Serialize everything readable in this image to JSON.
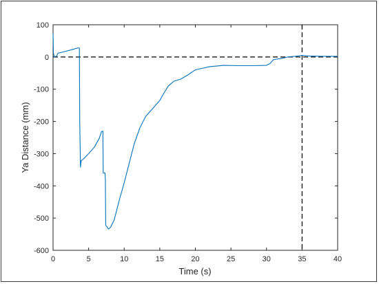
{
  "chart_data": {
    "type": "line",
    "title": "",
    "xlabel": "Time (s)",
    "ylabel": "Ya Distance  (mm)",
    "xlim": [
      0,
      40
    ],
    "ylim": [
      -600,
      100
    ],
    "xticks": [
      0,
      5,
      10,
      15,
      20,
      25,
      30,
      35,
      40
    ],
    "yticks": [
      100,
      0,
      -100,
      -200,
      -300,
      -400,
      -500,
      -600
    ],
    "grid": false,
    "series": [
      {
        "color": "#0072BD",
        "points": [
          [
            0.0,
            72
          ],
          [
            0.05,
            12
          ],
          [
            0.2,
            0
          ],
          [
            0.5,
            3
          ],
          [
            0.7,
            12
          ],
          [
            1.5,
            16
          ],
          [
            2.5,
            22
          ],
          [
            3.5,
            28
          ],
          [
            3.7,
            28
          ],
          [
            3.75,
            -200
          ],
          [
            3.85,
            -342
          ],
          [
            3.95,
            -322
          ],
          [
            4.3,
            -316
          ],
          [
            5.0,
            -300
          ],
          [
            5.8,
            -280
          ],
          [
            6.5,
            -252
          ],
          [
            6.8,
            -232
          ],
          [
            7.0,
            -230
          ],
          [
            7.05,
            -360
          ],
          [
            7.3,
            -360
          ],
          [
            7.35,
            -380
          ],
          [
            7.4,
            -522
          ],
          [
            7.8,
            -534
          ],
          [
            8.1,
            -528
          ],
          [
            8.6,
            -505
          ],
          [
            9.3,
            -445
          ],
          [
            10.0,
            -390
          ],
          [
            10.7,
            -330
          ],
          [
            11.4,
            -270
          ],
          [
            12.2,
            -220
          ],
          [
            13.0,
            -185
          ],
          [
            14.0,
            -160
          ],
          [
            15.0,
            -135
          ],
          [
            15.5,
            -115
          ],
          [
            16.2,
            -90
          ],
          [
            17.0,
            -75
          ],
          [
            18.0,
            -68
          ],
          [
            19.0,
            -55
          ],
          [
            20.0,
            -40
          ],
          [
            21.0,
            -35
          ],
          [
            22.0,
            -30
          ],
          [
            24.0,
            -26
          ],
          [
            26.0,
            -27
          ],
          [
            28.0,
            -27
          ],
          [
            30.0,
            -26
          ],
          [
            30.5,
            -20
          ],
          [
            31.0,
            -8
          ],
          [
            32.0,
            -5
          ],
          [
            33.0,
            0
          ],
          [
            34.0,
            2
          ],
          [
            35.0,
            5
          ],
          [
            36.0,
            3
          ],
          [
            38.0,
            2
          ],
          [
            40.0,
            2
          ]
        ]
      }
    ],
    "reference_lines": [
      {
        "orientation": "horizontal",
        "value": 0,
        "style": "dashed",
        "color": "#000000"
      },
      {
        "orientation": "vertical",
        "value": 35,
        "style": "dashed",
        "color": "#000000"
      }
    ]
  }
}
